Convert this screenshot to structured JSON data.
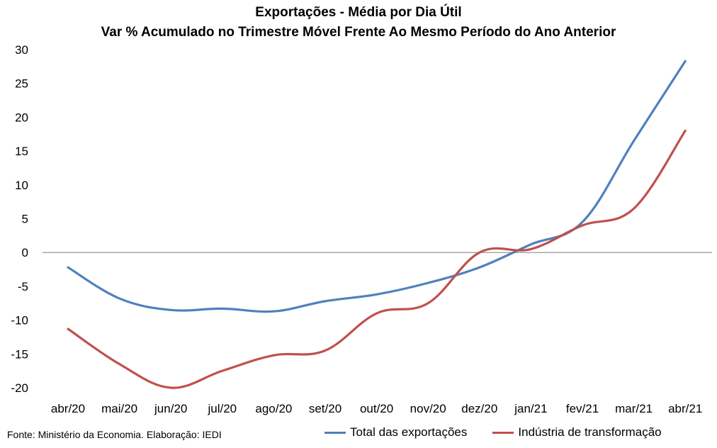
{
  "chart_data": {
    "type": "line",
    "title": "Exportações - Média por Dia Útil",
    "subtitle": "Var % Acumulado no Trimestre Móvel Frente Ao Mesmo Período do Ano Anterior",
    "categories": [
      "abr/20",
      "mai/20",
      "jun/20",
      "jul/20",
      "ago/20",
      "set/20",
      "out/20",
      "nov/20",
      "dez/20",
      "jan/21",
      "fev/21",
      "mar/21",
      "abr/21"
    ],
    "series": [
      {
        "name": "Total das exportações",
        "color": "#4f81bd",
        "values": [
          -2.2,
          -6.8,
          -8.5,
          -8.3,
          -8.7,
          -7.2,
          -6.2,
          -4.5,
          -2.2,
          1.2,
          4.5,
          16.5,
          28.3
        ]
      },
      {
        "name": "Indústria de transformação",
        "color": "#c0504d",
        "values": [
          -11.3,
          -16.5,
          -20.0,
          -17.5,
          -15.2,
          -14.5,
          -9.0,
          -7.5,
          0.0,
          0.5,
          4.0,
          6.5,
          18.0
        ]
      }
    ],
    "yticks": [
      30,
      25,
      20,
      15,
      10,
      5,
      0,
      -5,
      -10,
      -15,
      -20
    ],
    "ylim": [
      -20,
      30
    ],
    "grid": false,
    "legend_position": "bottom"
  },
  "footer": {
    "source": "Fonte: Ministério da Economia. Elaboração: IEDI"
  }
}
